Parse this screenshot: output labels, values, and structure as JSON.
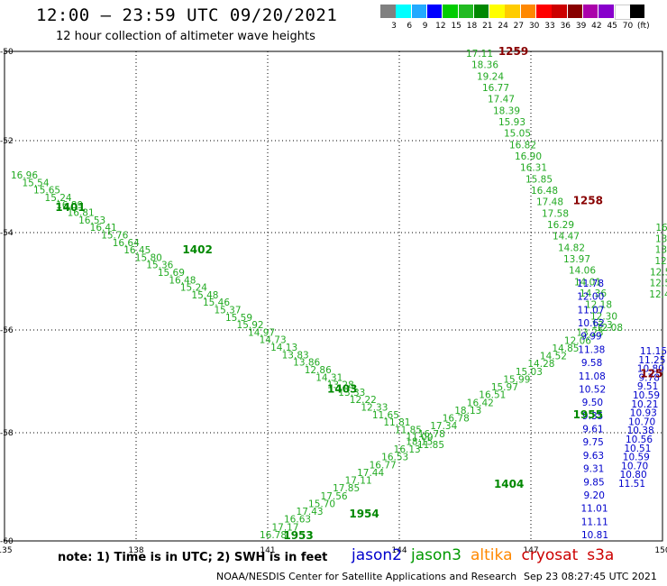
{
  "header": {
    "title": "12:00 – 23:59 UTC 09/20/2021",
    "subtitle": "12 hour collection of altimeter wave heights"
  },
  "colorbar": {
    "colors": [
      "#808080",
      "#00ffff",
      "#22aaff",
      "#0000ff",
      "#00cc00",
      "#22bb22",
      "#008800",
      "#ffff00",
      "#ffcc00",
      "#ff8800",
      "#ff0000",
      "#cc0000",
      "#880000",
      "#aa00aa",
      "#8800cc",
      "#ffffff",
      "#000000"
    ],
    "labels": [
      "3",
      "6",
      "9",
      "12",
      "15",
      "18",
      "21",
      "24",
      "27",
      "30",
      "33",
      "36",
      "39",
      "42",
      "45",
      "70",
      "(ft)"
    ]
  },
  "axes": {
    "lon_ticks": [
      "135",
      "138",
      "141",
      "144",
      "147",
      "150"
    ],
    "lat_ticks": [
      "-50",
      "-52",
      "-54",
      "-56",
      "-58",
      "-60"
    ]
  },
  "tracks": [
    {
      "id": "t1401",
      "label": "1401",
      "color": "#008800",
      "lon": 136.5,
      "lat": -53.45
    },
    {
      "id": "t1402",
      "label": "1402",
      "color": "#008800",
      "lon": 139.4,
      "lat": -54.35
    },
    {
      "id": "t1403",
      "label": "1403",
      "color": "#008800",
      "lon": 142.7,
      "lat": -57.15
    },
    {
      "id": "t1404",
      "label": "1404",
      "color": "#008800",
      "lon": 146.5,
      "lat": -58.95
    },
    {
      "id": "t1953",
      "label": "1953",
      "color": "#008800",
      "lon": 141.7,
      "lat": -59.9
    },
    {
      "id": "t1954",
      "label": "1954",
      "color": "#008800",
      "lon": 143.2,
      "lat": -59.5
    },
    {
      "id": "t1955",
      "label": "1955",
      "color": "#008800",
      "lon": 148.3,
      "lat": -57.65
    },
    {
      "id": "t1259",
      "label": "1259",
      "color": "#880000",
      "lon": 146.6,
      "lat": -50.0
    },
    {
      "id": "t1258",
      "label": "1258",
      "color": "#880000",
      "lon": 148.3,
      "lat": -53.3
    },
    {
      "id": "t1257",
      "label": "125",
      "color": "#880000",
      "lon": 149.75,
      "lat": -56.85
    }
  ],
  "wave_labels": {
    "satellite_1400": {
      "color": "#22aa22",
      "values": [
        "16.96",
        "15.54",
        "15.65",
        "15.24",
        "16.89",
        "16.81",
        "16.53",
        "16.41",
        "15.76",
        "16.64",
        "16.45",
        "15.80",
        "15.36",
        "15.69",
        "16.48",
        "15.24",
        "15.48",
        "15.46",
        "15.37",
        "15.59",
        "15.92",
        "14.97",
        "14.73",
        "14.13",
        "13.83",
        "13.86",
        "12.86",
        "14.31",
        "13.28",
        "13.33",
        "12.22",
        "12.33",
        "11.65",
        "11.81",
        "11.85",
        "11.00",
        "11.85"
      ]
    },
    "satellite_1950": {
      "color": "#22aa22",
      "values": [
        "16.78",
        "17.17",
        "16.63",
        "17.43",
        "15.70",
        "17.56",
        "17.85",
        "17.11",
        "17.44",
        "16.77",
        "16.53",
        "16.13",
        "18.15",
        "16.78",
        "17.34",
        "16.78",
        "18.13",
        "16.42",
        "16.51",
        "15.97",
        "15.99",
        "15.03",
        "14.28",
        "14.52",
        "14.85",
        "12.06",
        "13.23",
        "13.3"
      ]
    },
    "cryosat_1259": {
      "color": "#22aa22",
      "values": [
        "17.11",
        "18.36",
        "19.24",
        "16.77",
        "17.47",
        "18.39",
        "15.93",
        "15.05",
        "16.82",
        "16.90",
        "16.31",
        "15.85",
        "16.48",
        "17.48",
        "17.58",
        "16.29",
        "14.47",
        "14.82",
        "13.97",
        "14.06",
        "14.01",
        "14.36",
        "12.18",
        "12.30",
        "12.08"
      ]
    },
    "jason_blue": {
      "color": "#0000cc",
      "values": [
        "11.78",
        "12.00",
        "11.07",
        "10.62",
        "9.99",
        "11.38",
        "9.58",
        "11.08",
        "10.52",
        "9.50",
        "9.35",
        "9.61",
        "9.75",
        "9.63",
        "9.31",
        "9.85",
        "9.20",
        "11.01",
        "11.11",
        "10.81",
        "11.51",
        "10.80",
        "10.70",
        "10.59",
        "10.51",
        "10.56",
        "10.38",
        "10.70",
        "10.93",
        "10.21",
        "10.59",
        "9.51",
        "9.78",
        "10.80",
        "11.25",
        "11.15"
      ]
    },
    "right_edge": {
      "color": "#22aa22",
      "values": [
        "16",
        "13",
        "13",
        "12",
        "12.5",
        "12.5",
        "12.4"
      ]
    }
  },
  "footer": {
    "note": "note: 1) Time is in UTC; 2) SWH is in feet",
    "legend": [
      {
        "name": "jason2",
        "color": "#0000cc"
      },
      {
        "name": "jason3",
        "color": "#009900"
      },
      {
        "name": "altika",
        "color": "#ff8800"
      },
      {
        "name": "cryosat",
        "color": "#cc0000"
      },
      {
        "name": "s3a",
        "color": "#cc0000"
      }
    ],
    "credit": "NOAA/NESDIS Center for Satellite Applications and Research",
    "timestamp": "Sep 23 08:27:45 UTC 2021"
  }
}
